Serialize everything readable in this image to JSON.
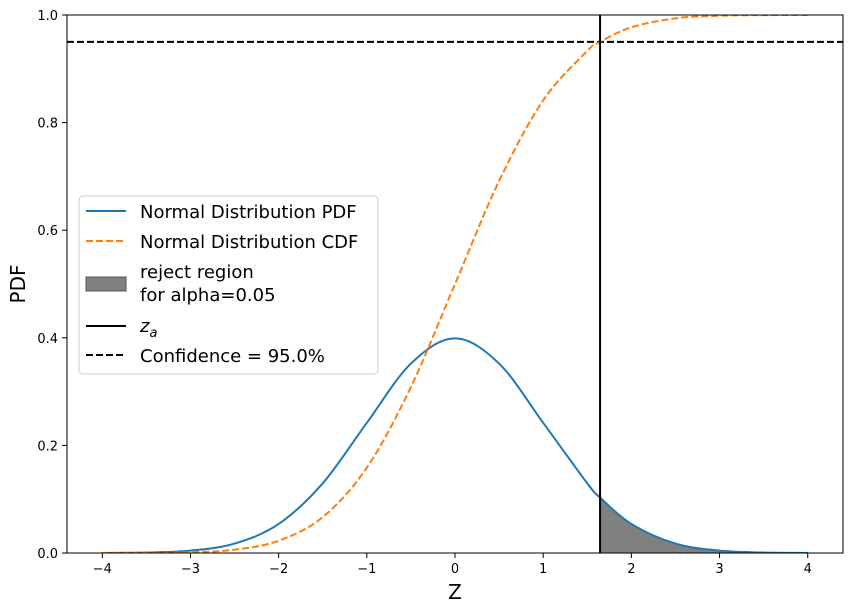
{
  "chart_data": {
    "type": "line",
    "xlabel": "Z",
    "ylabel": "PDF",
    "xlim": [
      -4.4,
      4.4
    ],
    "ylim": [
      0.0,
      1.0
    ],
    "x_ticks": [
      -4,
      -3,
      -2,
      -1,
      0,
      1,
      2,
      3,
      4
    ],
    "x_tick_labels": [
      "−4",
      "−3",
      "−2",
      "−1",
      "0",
      "1",
      "2",
      "3",
      "4"
    ],
    "y_ticks": [
      0.0,
      0.2,
      0.4,
      0.6,
      0.8,
      1.0
    ],
    "y_tick_labels": [
      "0.0",
      "0.2",
      "0.4",
      "0.6",
      "0.8",
      "1.0"
    ],
    "grid": false,
    "legend_position": "center-left",
    "series": [
      {
        "name": "Normal Distribution PDF",
        "style": "solid",
        "color": "#1f77b4",
        "x": [
          -4.0,
          -3.5,
          -3.0,
          -2.5,
          -2.0,
          -1.5,
          -1.0,
          -0.5,
          0.0,
          0.5,
          1.0,
          1.5,
          1.645,
          2.0,
          2.5,
          3.0,
          3.5,
          4.0
        ],
        "y": [
          0.0001,
          0.0009,
          0.0044,
          0.0175,
          0.054,
          0.1295,
          0.242,
          0.3521,
          0.3989,
          0.3521,
          0.242,
          0.1295,
          0.1031,
          0.054,
          0.0175,
          0.0044,
          0.0009,
          0.0001
        ]
      },
      {
        "name": "Normal Distribution CDF",
        "style": "dashed",
        "color": "#ff7f0e",
        "x": [
          -4.0,
          -3.5,
          -3.0,
          -2.5,
          -2.0,
          -1.5,
          -1.0,
          -0.5,
          0.0,
          0.5,
          1.0,
          1.5,
          1.645,
          2.0,
          2.5,
          3.0,
          3.5,
          4.0
        ],
        "y": [
          0.0,
          0.0002,
          0.0013,
          0.0062,
          0.0228,
          0.0668,
          0.1587,
          0.3085,
          0.5,
          0.6915,
          0.8413,
          0.9332,
          0.95,
          0.9772,
          0.9938,
          0.9987,
          0.9998,
          1.0
        ]
      }
    ],
    "reject_region": {
      "label_line1": "reject region",
      "label_line2": "for alpha=0.05",
      "x_start": 1.645,
      "x_end": 4.0,
      "color": "#808080"
    },
    "z_a": {
      "label_main": "z",
      "label_sub": "a",
      "x": 1.645,
      "color": "#000000"
    },
    "confidence_line": {
      "label": "Confidence = 95.0%",
      "y": 0.95,
      "color": "#000000"
    }
  }
}
